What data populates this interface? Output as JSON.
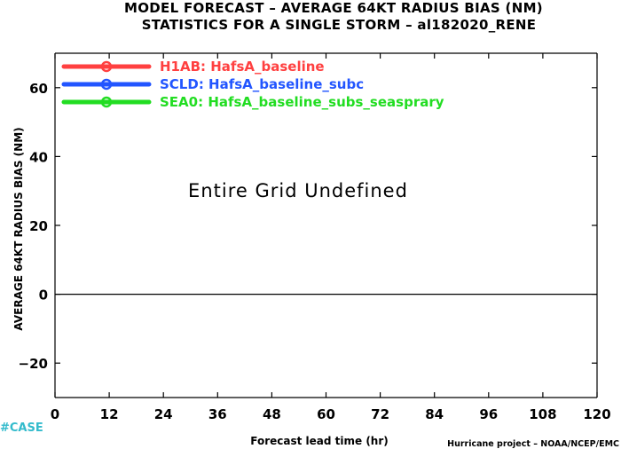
{
  "colors": {
    "background": "#ffffff",
    "axis": "#000000",
    "zero_line": "#000000",
    "case_tag": "#33bbcc"
  },
  "chart_data": {
    "type": "line",
    "title": "MODEL FORECAST – AVERAGE 64KT RADIUS BIAS (NM)",
    "subtitle": "STATISTICS FOR A SINGLE STORM – al182020_RENE",
    "xlabel": "Forecast lead time (hr)",
    "ylabel": "AVERAGE 64KT RADIUS BIAS (NM)",
    "xlim": [
      0,
      120
    ],
    "ylim": [
      -30,
      70
    ],
    "x_ticks": [
      0,
      12,
      24,
      36,
      48,
      60,
      72,
      84,
      96,
      108,
      120
    ],
    "x_tick_labels": [
      "0",
      "12",
      "24",
      "36",
      "48",
      "60",
      "72",
      "84",
      "96",
      "108",
      "120"
    ],
    "y_ticks": [
      -20,
      0,
      20,
      40,
      60
    ],
    "y_tick_labels": [
      "−20",
      "0",
      "20",
      "40",
      "60"
    ],
    "reference_line_y": 0,
    "grid": false,
    "legend_position": "top-left",
    "series": [
      {
        "name": "H1AB: HafsA_baseline",
        "color": "#ff4040",
        "values": []
      },
      {
        "name": "SCLD: HafsA_baseline_subc",
        "color": "#2255ff",
        "values": []
      },
      {
        "name": "SEA0: HafsA_baseline_subs_seasprary",
        "color": "#22dd22",
        "values": []
      }
    ],
    "annotation": "Entire Grid Undefined",
    "case_tag": "#CASE",
    "credit": "Hurricane project – NOAA/NCEP/EMC"
  }
}
